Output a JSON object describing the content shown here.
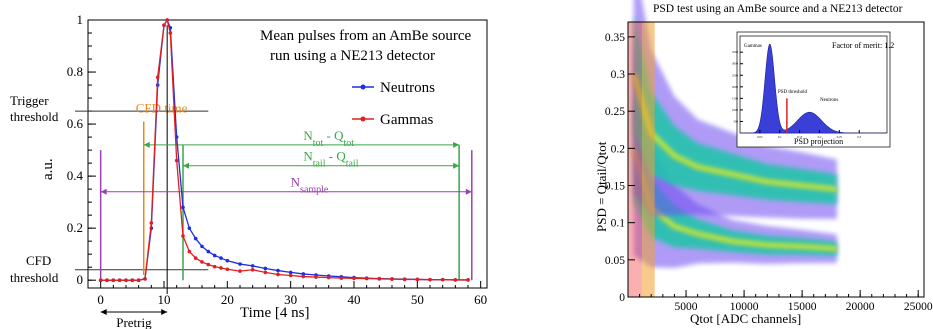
{
  "chart_data": [
    {
      "type": "line",
      "title": "",
      "annotation_text": [
        "Mean pulses from an AmBe source",
        "run using a NE213 detector"
      ],
      "xlabel": "Time [4 ns]",
      "ylabel": "a.u.",
      "xlim": [
        -2,
        61
      ],
      "ylim": [
        -0.03,
        1.0
      ],
      "x_ticks": [
        "0",
        "10",
        "20",
        "30",
        "40",
        "50",
        "60"
      ],
      "y_ticks": [
        "0",
        "0.2",
        "0.4",
        "0.6",
        "0.8",
        "1"
      ],
      "series": [
        {
          "name": "Neutrons",
          "color": "#1f2fe0",
          "x": [
            0,
            1,
            2,
            3,
            4,
            5,
            6,
            7,
            8,
            9,
            10,
            10.5,
            11,
            12,
            13,
            14,
            15,
            16,
            17,
            18,
            19,
            20,
            22,
            24,
            26,
            28,
            30,
            32,
            34,
            36,
            38,
            40,
            42,
            44,
            46,
            48,
            50,
            52,
            54,
            56,
            58
          ],
          "y": [
            0,
            0,
            0,
            0,
            0,
            0,
            0,
            0.005,
            0.2,
            0.75,
            0.98,
            1.0,
            0.97,
            0.55,
            0.28,
            0.2,
            0.16,
            0.13,
            0.11,
            0.095,
            0.085,
            0.075,
            0.062,
            0.055,
            0.045,
            0.037,
            0.03,
            0.024,
            0.02,
            0.016,
            0.013,
            0.01,
            0.008,
            0.006,
            0.005,
            0.004,
            0.003,
            0.002,
            0.002,
            0.001,
            0.001
          ]
        },
        {
          "name": "Gammas",
          "color": "#e02020",
          "x": [
            0,
            1,
            2,
            3,
            4,
            5,
            6,
            7,
            8,
            9,
            10,
            10.5,
            11,
            12,
            13,
            14,
            15,
            16,
            17,
            18,
            19,
            20,
            22,
            24,
            26,
            28,
            30,
            32,
            34,
            36,
            38,
            40,
            42,
            44,
            46,
            48,
            50,
            52,
            54,
            56,
            58
          ],
          "y": [
            0,
            0,
            0,
            0,
            0,
            0,
            0,
            0.005,
            0.22,
            0.78,
            0.98,
            1.0,
            0.95,
            0.46,
            0.17,
            0.11,
            0.085,
            0.07,
            0.06,
            0.052,
            0.047,
            0.042,
            0.035,
            0.04,
            0.03,
            0.022,
            0.018,
            0.014,
            0.012,
            0.01,
            0.008,
            0.007,
            0.006,
            0.005,
            0.004,
            0.003,
            0.003,
            0.002,
            0.002,
            0.001,
            0.001
          ]
        }
      ],
      "annotations": {
        "trigger_threshold": {
          "label_line1": "Trigger",
          "label_line2": "threshold",
          "y": 0.65
        },
        "cfd_threshold": {
          "label_line1": "CFD",
          "label_line2": "threshold",
          "y": 0.04
        },
        "cfd_time": {
          "label": "CFD time",
          "x": 6.8
        },
        "pretrig": {
          "label": "Pretrig",
          "x_start": 0,
          "x_end": 10.5
        },
        "n_tot": {
          "label_base": "N",
          "label_sub": "tot",
          "label_mid": " - Q",
          "label_sub2": "tot",
          "x_start": 6.8,
          "x_end": 58.6,
          "y": 0.52
        },
        "n_tail": {
          "label_base": "N",
          "label_sub": "tail",
          "label_mid": " - Q",
          "label_sub2": "tail",
          "x_start": 13,
          "x_end": 58.6,
          "y": 0.44
        },
        "n_sample": {
          "label_base": "N",
          "label_sub": "sample",
          "x_start": 0,
          "x_end": 58.6,
          "y": 0.34
        }
      }
    },
    {
      "type": "heatmap",
      "title": "PSD test using an AmBe source and a NE213 detector",
      "xlabel": "Qtot [ADC channels]",
      "ylabel": "PSD = Qtail/Qtot",
      "xlim": [
        0,
        25500
      ],
      "ylim": [
        0,
        0.37
      ],
      "x_ticks": [
        "5000",
        "10000",
        "15000",
        "20000",
        "25000"
      ],
      "y_ticks": [
        "0",
        "0.05",
        "0.1",
        "0.15",
        "0.2",
        "0.25",
        "0.3",
        "0.35"
      ],
      "bands": [
        {
          "name": "Gammas",
          "psd": [
            0.2,
            0.12,
            0.095,
            0.085,
            0.075,
            0.07,
            0.068,
            0.065
          ],
          "qtot": [
            500,
            2000,
            4000,
            6000,
            9000,
            12000,
            15000,
            18000
          ]
        },
        {
          "name": "Neutrons",
          "psd": [
            0.3,
            0.22,
            0.19,
            0.175,
            0.165,
            0.155,
            0.15,
            0.145
          ],
          "qtot": [
            500,
            2000,
            4000,
            6000,
            9000,
            12000,
            15000,
            18000
          ]
        }
      ],
      "inset": {
        "title": "PSD projection",
        "factor_of_merit": "Factor of merit: 1.2",
        "label_gammas": "Gammas",
        "label_neutrons": "Neutrons",
        "label_threshold": "PSD threshold",
        "x_ticks": [
          "0.05",
          "0.1",
          "0.15",
          "0.2",
          "0.25",
          "0.3"
        ],
        "y_ticks": [
          "500",
          "1000",
          "1500",
          "2000",
          "2500",
          "3000",
          "3500"
        ]
      }
    }
  ]
}
